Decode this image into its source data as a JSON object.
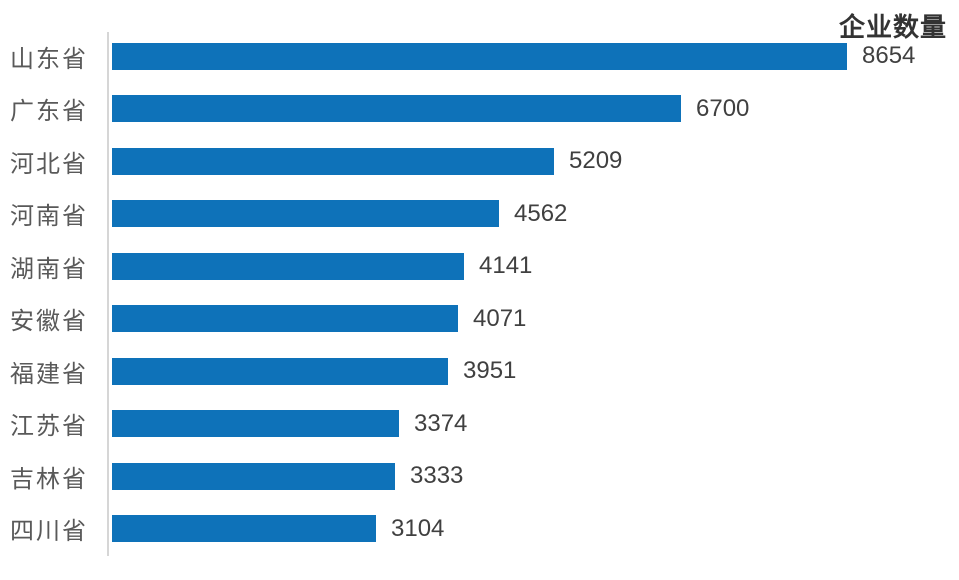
{
  "chart_data": {
    "type": "bar",
    "orientation": "horizontal",
    "title": "企业数量",
    "categories": [
      "山东省",
      "广东省",
      "河北省",
      "河南省",
      "湖南省",
      "安徽省",
      "福建省",
      "江苏省",
      "吉林省",
      "四川省"
    ],
    "values": [
      8654,
      6700,
      5209,
      4562,
      4141,
      4071,
      3951,
      3374,
      3333,
      3104
    ],
    "value_labels": [
      "8654",
      "6700",
      "5209",
      "4562",
      "4141",
      "4071",
      "3951",
      "3374",
      "3333",
      "3104"
    ],
    "xlim": [
      0,
      8654
    ],
    "grid": false,
    "legend": "none",
    "value_labels_position": "outside-end",
    "colors": {
      "bar": "#0e72b9",
      "axis_line": "#d6d6d6",
      "category_label": "#595959",
      "value_label": "#404040",
      "title": "#333333",
      "background": "#ffffff"
    }
  }
}
